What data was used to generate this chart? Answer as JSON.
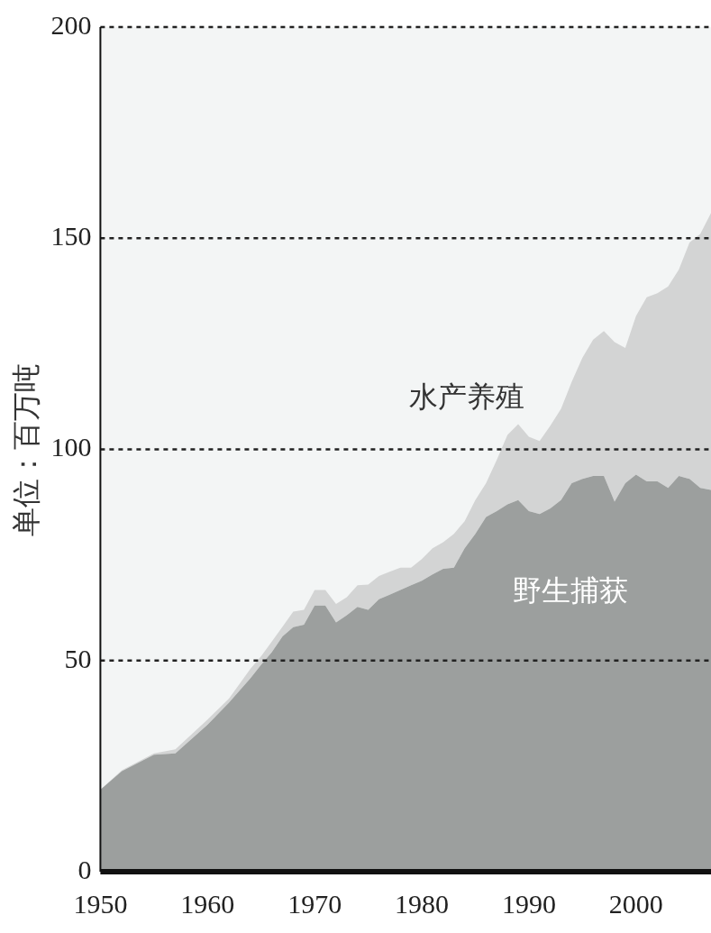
{
  "chart_data": {
    "type": "area",
    "stacked": true,
    "ylabel": "单位：百万吨",
    "x": [
      1950,
      1952,
      1955,
      1957,
      1960,
      1962,
      1964,
      1965,
      1966,
      1967,
      1968,
      1969,
      1970,
      1971,
      1972,
      1973,
      1974,
      1975,
      1976,
      1977,
      1978,
      1979,
      1980,
      1981,
      1982,
      1983,
      1984,
      1985,
      1986,
      1987,
      1988,
      1989,
      1990,
      1991,
      1992,
      1993,
      1994,
      1995,
      1996,
      1997,
      1998,
      1999,
      2000,
      2001,
      2002,
      2003,
      2004,
      2005,
      2006,
      2007
    ],
    "series": [
      {
        "name": "野生捕获",
        "color": "#9c9f9e",
        "values": [
          19.4,
          23.8,
          27.7,
          28,
          34.8,
          40,
          45.8,
          49,
          52,
          55.7,
          57.9,
          58.5,
          63,
          63,
          59,
          60.7,
          62.7,
          62,
          64.5,
          65.6,
          66.7,
          67.8,
          68.9,
          70.4,
          71.7,
          72,
          76.6,
          80,
          84,
          85.4,
          87,
          88,
          85.4,
          84.7,
          86,
          88,
          92,
          93,
          93.7,
          93.7,
          87.6,
          92,
          94,
          92.4,
          92.4,
          90.9,
          93.7,
          93,
          90.9,
          90.4
        ]
      },
      {
        "name": "水产养殖",
        "color": "#d3d4d4",
        "values": [
          0,
          0.2,
          0.3,
          1,
          1.2,
          1,
          2.2,
          2,
          2.5,
          2.3,
          3.7,
          3.5,
          3.7,
          3.7,
          4.4,
          4.3,
          5.1,
          6,
          5.5,
          5.4,
          5.3,
          4.2,
          5.1,
          6.2,
          6.3,
          8,
          6.4,
          8,
          8,
          12.1,
          16.4,
          18,
          17.6,
          17.3,
          19.6,
          21.6,
          24,
          28.7,
          32.3,
          34.3,
          37.8,
          32,
          37.6,
          43.6,
          44.6,
          47.7,
          48.9,
          56,
          60.1,
          65.6
        ]
      }
    ],
    "xlim": [
      1950,
      2007
    ],
    "xticks": [
      1950,
      1960,
      1970,
      1980,
      1990,
      2000
    ],
    "ylim": [
      0,
      200
    ],
    "yticks": [
      0,
      50,
      100,
      150,
      200
    ],
    "grid": "y",
    "legend": false
  }
}
